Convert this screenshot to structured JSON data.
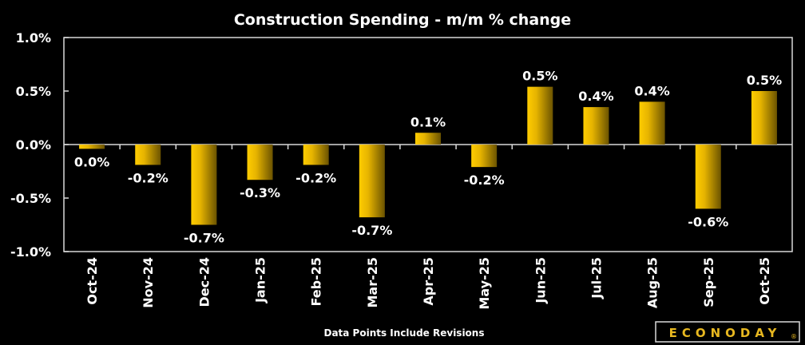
{
  "chart_data": {
    "type": "bar",
    "title": "Construction Spending - m/m % change",
    "xlabel": "",
    "ylabel": "",
    "ylim": [
      -1.0,
      1.0
    ],
    "yticks": [
      1.0,
      0.5,
      0.0,
      -0.5,
      -1.0
    ],
    "ytick_labels": [
      "1.0%",
      "0.5%",
      "0.0%",
      "-0.5%",
      "-1.0%"
    ],
    "grid": false,
    "legend": "none",
    "categories": [
      "Oct-24",
      "Nov-24",
      "Dec-24",
      "Jan-25",
      "Feb-25",
      "Mar-25",
      "Apr-25",
      "May-25",
      "Jun-25",
      "Jul-25",
      "Aug-25",
      "Sep-25",
      "Oct-25"
    ],
    "values": [
      -0.04,
      -0.19,
      -0.75,
      -0.33,
      -0.19,
      -0.68,
      0.11,
      -0.21,
      0.54,
      0.35,
      0.4,
      -0.6,
      0.5
    ],
    "data_labels": [
      "0.0%",
      "-0.2%",
      "-0.7%",
      "-0.3%",
      "-0.2%",
      "-0.7%",
      "0.1%",
      "-0.2%",
      "0.5%",
      "0.4%",
      "0.4%",
      "-0.6%",
      "0.5%"
    ],
    "footnote": "Data Points Include Revisions"
  },
  "colors": {
    "background": "#000000",
    "bar_light": "#ffcc00",
    "bar_dark": "#6b5300",
    "axis": "#d9d9d9",
    "text": "#ffffff",
    "brand": "#e8b820"
  },
  "brand": {
    "name": "ECONODAY",
    "mark": "®"
  }
}
